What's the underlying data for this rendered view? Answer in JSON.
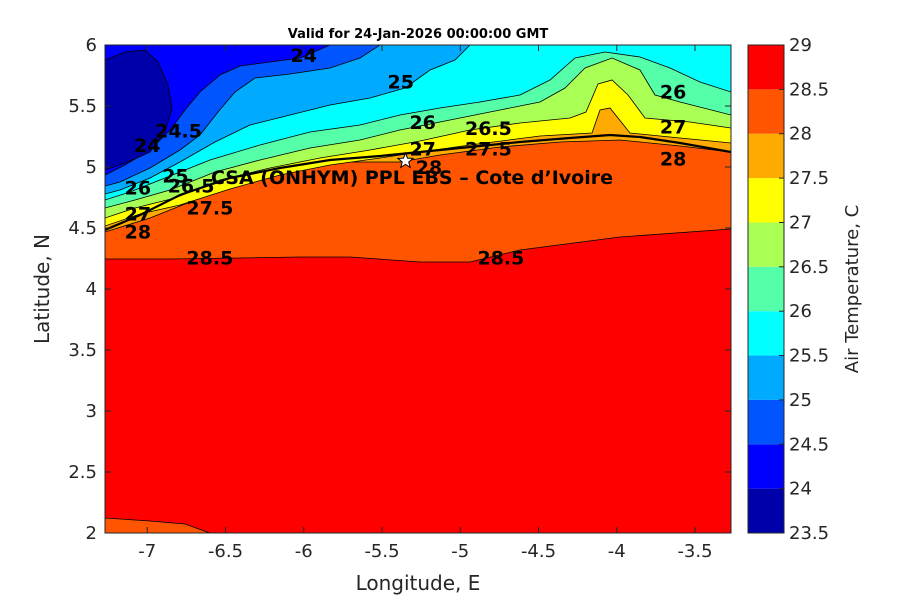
{
  "chart_data": {
    "type": "contour",
    "title": "Valid for 24-Jan-2026 00:00:00 GMT",
    "xlabel": "Longitude, E",
    "ylabel": "Latitude, N",
    "xlim": [
      -7.27,
      -3.27
    ],
    "ylim": [
      2,
      6
    ],
    "xticks": [
      "-7",
      "-6.5",
      "-6",
      "-5.5",
      "-5",
      "-4.5",
      "-4",
      "-3.5"
    ],
    "xtick_values": [
      -7,
      -6.5,
      -6,
      -5.5,
      -5,
      -4.5,
      -4,
      -3.5
    ],
    "yticks": [
      "2",
      "2.5",
      "3",
      "3.5",
      "4",
      "4.5",
      "5",
      "5.5",
      "6"
    ],
    "ytick_values": [
      2,
      2.5,
      3,
      3.5,
      4,
      4.5,
      5,
      5.5,
      6
    ],
    "colorbar": {
      "label": "Air Temperature, C",
      "levels": [
        23.5,
        24,
        24.5,
        25,
        25.5,
        26,
        26.5,
        27,
        27.5,
        28,
        28.5,
        29
      ],
      "tick_labels": [
        "23.5",
        "24",
        "24.5",
        "25",
        "25.5",
        "26",
        "26.5",
        "27",
        "27.5",
        "28",
        "28.5",
        "29"
      ],
      "colors": [
        "#0000aa",
        "#0000ff",
        "#0055ff",
        "#00aaff",
        "#00ffff",
        "#55ffaa",
        "#aaff55",
        "#ffff00",
        "#ffaa00",
        "#ff5500",
        "#ff0000",
        "#aa0000"
      ]
    },
    "contour_labels": [
      {
        "text": "24",
        "lon": -6.0,
        "lat": 5.92
      },
      {
        "text": "25",
        "lon": -5.38,
        "lat": 5.7
      },
      {
        "text": "24",
        "lon": -7.0,
        "lat": 5.18
      },
      {
        "text": "24.5",
        "lon": -6.8,
        "lat": 5.3
      },
      {
        "text": "26",
        "lon": -5.24,
        "lat": 5.37
      },
      {
        "text": "26.5",
        "lon": -4.82,
        "lat": 5.32
      },
      {
        "text": "27.5",
        "lon": -4.82,
        "lat": 5.15
      },
      {
        "text": "27",
        "lon": -5.24,
        "lat": 5.15
      },
      {
        "text": "28",
        "lon": -5.2,
        "lat": 5.0
      },
      {
        "text": "26",
        "lon": -3.64,
        "lat": 5.62
      },
      {
        "text": "27",
        "lon": -3.64,
        "lat": 5.33
      },
      {
        "text": "28",
        "lon": -3.64,
        "lat": 5.07
      },
      {
        "text": "26",
        "lon": -7.06,
        "lat": 4.83
      },
      {
        "text": "26.5",
        "lon": -6.72,
        "lat": 4.85
      },
      {
        "text": "27",
        "lon": -7.06,
        "lat": 4.62
      },
      {
        "text": "27.5",
        "lon": -6.6,
        "lat": 4.67
      },
      {
        "text": "28",
        "lon": -7.06,
        "lat": 4.47
      },
      {
        "text": "28.5",
        "lon": -6.6,
        "lat": 4.26
      },
      {
        "text": "28.5",
        "lon": -4.74,
        "lat": 4.26
      },
      {
        "text": "25",
        "lon": -6.82,
        "lat": 4.93
      }
    ],
    "site": {
      "label": "CSA (ONHYM) PPL EBS  – Cote d’Ivoire",
      "lon": -5.35,
      "lat": 5.05,
      "marker": "star"
    }
  }
}
